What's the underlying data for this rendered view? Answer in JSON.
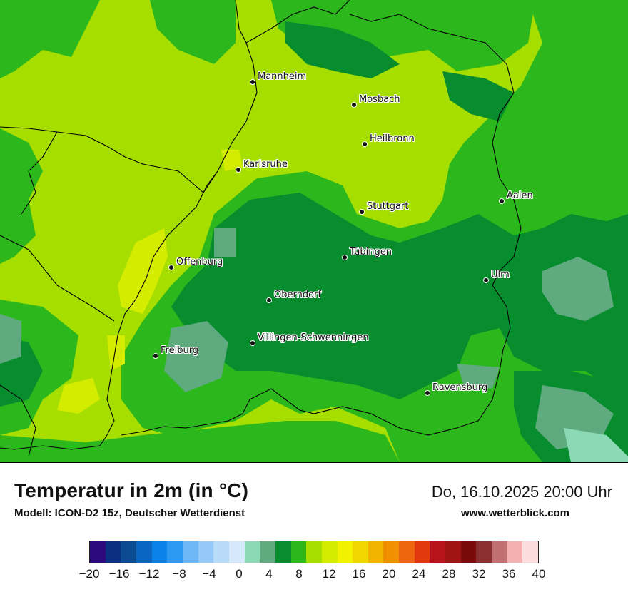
{
  "map": {
    "cities": [
      {
        "name": "Mannheim"
      },
      {
        "name": "Mosbach"
      },
      {
        "name": "Heilbronn"
      },
      {
        "name": "Karlsruhe"
      },
      {
        "name": "Aalen"
      },
      {
        "name": "Stuttgart"
      },
      {
        "name": "Tübingen"
      },
      {
        "name": "Offenburg"
      },
      {
        "name": "Ulm"
      },
      {
        "name": "Oberndorf"
      },
      {
        "name": "Villingen-Schwenningen"
      },
      {
        "name": "Freiburg"
      },
      {
        "name": "Ravensburg"
      }
    ]
  },
  "header": {
    "title": "Temperatur in 2m (in °C)",
    "subtitle": "Modell: ICON-D2 15z, Deutscher Wetterdienst",
    "datetime": "Do, 16.10.2025 20:00 Uhr",
    "website": "www.wetterblick.com"
  },
  "legend": {
    "colors": [
      "#2c0a7e",
      "#0b2f80",
      "#0a4a90",
      "#0b66c2",
      "#0b82e8",
      "#2e99f5",
      "#6fb8f7",
      "#95c9f8",
      "#b8dbfa",
      "#d6e9fc",
      "#8cd9b5",
      "#5faa7f",
      "#078c2e",
      "#2cb81c",
      "#a6de00",
      "#d4ec00",
      "#f2f200",
      "#f2d600",
      "#f2b400",
      "#f09000",
      "#ec6610",
      "#e03a0e",
      "#b6141a",
      "#a01414",
      "#7a0a0a",
      "#8a3030",
      "#c07070",
      "#f4b0b0",
      "#fcdcdc"
    ],
    "tick_labels": [
      "−20",
      "−16",
      "−12",
      "−8",
      "−4",
      "0",
      "4",
      "8",
      "12",
      "16",
      "20",
      "24",
      "28",
      "32",
      "36",
      "40"
    ]
  }
}
